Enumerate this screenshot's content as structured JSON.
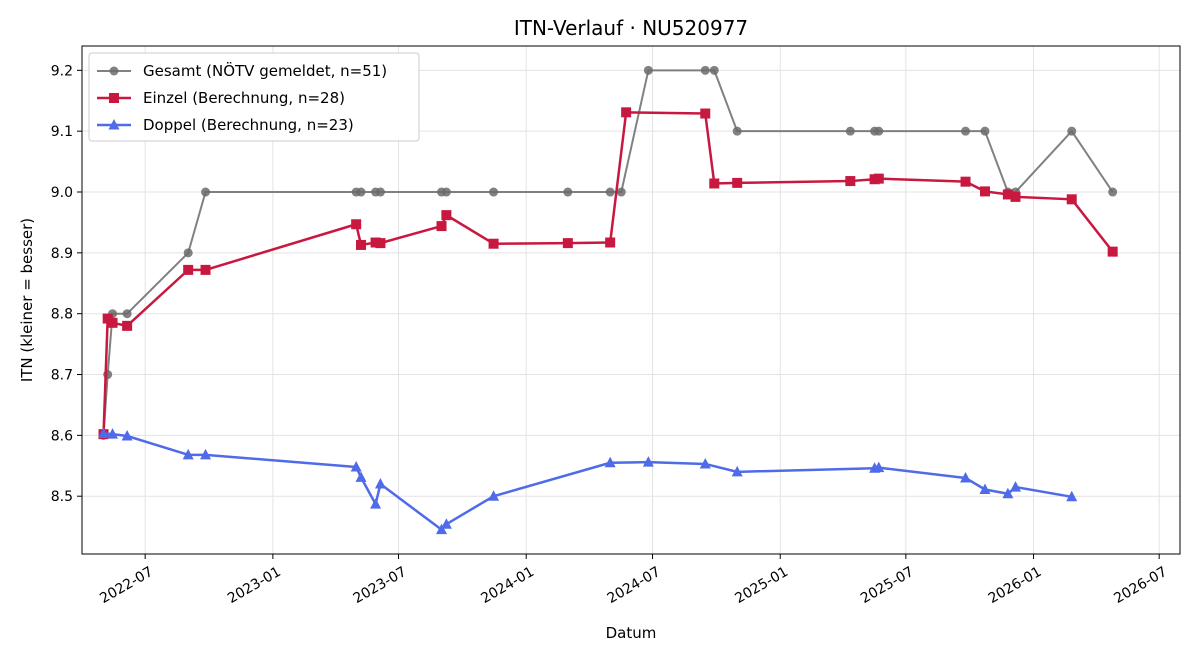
{
  "chart_data": {
    "type": "line",
    "title": "ITN-Verlauf · NU520977",
    "xlabel": "Datum",
    "ylabel": "ITN  (kleiner = besser)",
    "xlim": [
      "2022-04-01",
      "2026-07-31"
    ],
    "ylim": [
      8.405,
      9.24
    ],
    "grid": true,
    "legend_position": "top-left",
    "xticks": [
      "2022-07",
      "2023-01",
      "2023-07",
      "2024-01",
      "2024-07",
      "2025-01",
      "2025-07",
      "2026-01",
      "2026-07"
    ],
    "yticks": [
      "8.5",
      "8.6",
      "8.7",
      "8.8",
      "8.9",
      "9.0",
      "9.1",
      "9.2"
    ],
    "series": [
      {
        "name": "Gesamt (NÖTV gemeldet, n=51)",
        "color": "#6b6b6b",
        "marker": "circle",
        "points": [
          [
            "2022-05-02",
            8.6
          ],
          [
            "2022-05-08",
            8.7
          ],
          [
            "2022-05-15",
            8.8
          ],
          [
            "2022-06-05",
            8.8
          ],
          [
            "2022-09-01",
            8.9
          ],
          [
            "2022-09-26",
            9.0
          ],
          [
            "2023-05-01",
            9.0
          ],
          [
            "2023-05-08",
            9.0
          ],
          [
            "2023-05-29",
            9.0
          ],
          [
            "2023-06-05",
            9.0
          ],
          [
            "2023-09-01",
            9.0
          ],
          [
            "2023-09-08",
            9.0
          ],
          [
            "2023-11-15",
            9.0
          ],
          [
            "2024-03-01",
            9.0
          ],
          [
            "2024-05-01",
            9.0
          ],
          [
            "2024-05-17",
            9.0
          ],
          [
            "2024-06-25",
            9.2
          ],
          [
            "2024-09-15",
            9.2
          ],
          [
            "2024-09-28",
            9.2
          ],
          [
            "2024-10-31",
            9.1
          ],
          [
            "2025-04-12",
            9.1
          ],
          [
            "2025-05-17",
            9.1
          ],
          [
            "2025-05-23",
            9.1
          ],
          [
            "2025-09-25",
            9.1
          ],
          [
            "2025-10-23",
            9.1
          ],
          [
            "2025-11-25",
            9.0
          ],
          [
            "2025-12-06",
            9.0
          ],
          [
            "2026-02-25",
            9.1
          ],
          [
            "2026-04-25",
            9.0
          ]
        ]
      },
      {
        "name": "Einzel (Berechnung, n=28)",
        "color": "#c8183f",
        "marker": "square",
        "points": [
          [
            "2022-05-02",
            8.602
          ],
          [
            "2022-05-08",
            8.792
          ],
          [
            "2022-05-15",
            8.785
          ],
          [
            "2022-06-05",
            8.78
          ],
          [
            "2022-09-01",
            8.872
          ],
          [
            "2022-09-26",
            8.872
          ],
          [
            "2023-05-01",
            8.947
          ],
          [
            "2023-05-08",
            8.913
          ],
          [
            "2023-05-29",
            8.917
          ],
          [
            "2023-06-05",
            8.916
          ],
          [
            "2023-09-01",
            8.944
          ],
          [
            "2023-09-08",
            8.962
          ],
          [
            "2023-11-15",
            8.915
          ],
          [
            "2024-03-01",
            8.916
          ],
          [
            "2024-05-01",
            8.917
          ],
          [
            "2024-05-24",
            9.131
          ],
          [
            "2024-09-15",
            9.129
          ],
          [
            "2024-09-28",
            9.014
          ],
          [
            "2024-10-31",
            9.015
          ],
          [
            "2025-04-12",
            9.018
          ],
          [
            "2025-05-17",
            9.021
          ],
          [
            "2025-05-23",
            9.022
          ],
          [
            "2025-09-25",
            9.017
          ],
          [
            "2025-10-23",
            9.001
          ],
          [
            "2025-11-25",
            8.996
          ],
          [
            "2025-12-06",
            8.992
          ],
          [
            "2026-02-25",
            8.988
          ],
          [
            "2026-04-25",
            8.902
          ]
        ]
      },
      {
        "name": "Doppel (Berechnung, n=23)",
        "color": "#4f6be8",
        "marker": "triangle",
        "points": [
          [
            "2022-05-02",
            8.603
          ],
          [
            "2022-05-15",
            8.602
          ],
          [
            "2022-06-05",
            8.599
          ],
          [
            "2022-09-01",
            8.568
          ],
          [
            "2022-09-26",
            8.568
          ],
          [
            "2023-05-01",
            8.548
          ],
          [
            "2023-05-08",
            8.531
          ],
          [
            "2023-05-29",
            8.487
          ],
          [
            "2023-06-05",
            8.52
          ],
          [
            "2023-09-01",
            8.445
          ],
          [
            "2023-09-08",
            8.454
          ],
          [
            "2023-11-15",
            8.5
          ],
          [
            "2024-05-01",
            8.555
          ],
          [
            "2024-06-25",
            8.556
          ],
          [
            "2024-09-15",
            8.553
          ],
          [
            "2024-10-31",
            8.54
          ],
          [
            "2025-05-17",
            8.546
          ],
          [
            "2025-05-23",
            8.547
          ],
          [
            "2025-09-25",
            8.53
          ],
          [
            "2025-10-23",
            8.511
          ],
          [
            "2025-11-25",
            8.504
          ],
          [
            "2025-12-06",
            8.515
          ],
          [
            "2026-02-25",
            8.499
          ]
        ]
      }
    ]
  }
}
